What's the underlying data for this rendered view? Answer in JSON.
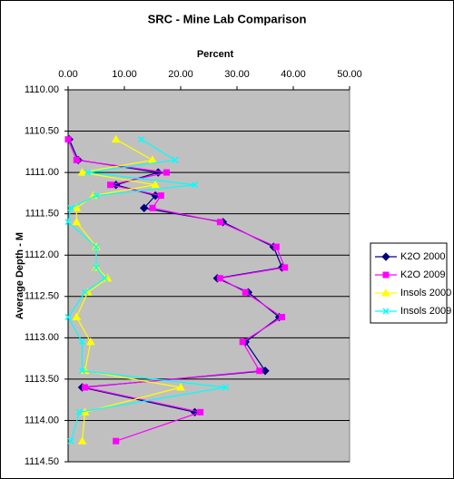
{
  "chart_data": {
    "type": "line",
    "title": "SRC - Mine Lab Comparison",
    "x_label": "Percent",
    "y_label": "Average Depth - M",
    "xlim": [
      0,
      50
    ],
    "xticks": [
      {
        "value": 0,
        "label": "0.00"
      },
      {
        "value": 10,
        "label": "10.00"
      },
      {
        "value": 20,
        "label": "20.00"
      },
      {
        "value": 30,
        "label": "30.00"
      },
      {
        "value": 40,
        "label": "40.00"
      },
      {
        "value": 50,
        "label": "50.00"
      }
    ],
    "ylim": [
      1110,
      1114.5
    ],
    "y_inverted": true,
    "yticks": [
      {
        "value": 1110,
        "label": "1110.00"
      },
      {
        "value": 1110.5,
        "label": "1110.50"
      },
      {
        "value": 1111,
        "label": "1111.00"
      },
      {
        "value": 1111.5,
        "label": "1111.50"
      },
      {
        "value": 1112,
        "label": "1112.00"
      },
      {
        "value": 1112.5,
        "label": "1112.50"
      },
      {
        "value": 1113,
        "label": "1113.00"
      },
      {
        "value": 1113.5,
        "label": "1113.50"
      },
      {
        "value": 1114,
        "label": "1114.00"
      },
      {
        "value": 1114.5,
        "label": "1114.50"
      }
    ],
    "grid": true,
    "legend": "right",
    "depth": [
      1110.6,
      1110.85,
      1111.0,
      1111.15,
      1111.28,
      1111.43,
      1111.6,
      1111.9,
      1112.15,
      1112.28,
      1112.45,
      1112.75,
      1113.05,
      1113.4,
      1113.6,
      1113.9,
      1114.25
    ],
    "series": [
      {
        "name": "K2O 2000",
        "color": "#000080",
        "marker": "diamond",
        "values": [
          0.2,
          1.8,
          16.0,
          8.5,
          15.5,
          13.5,
          27.5,
          36.5,
          38.0,
          26.5,
          32.0,
          37.5,
          31.5,
          35.0,
          2.5,
          22.5,
          null
        ]
      },
      {
        "name": "K2O 2009",
        "color": "#ff00ff",
        "marker": "square",
        "values": [
          0.0,
          1.5,
          17.5,
          7.5,
          16.5,
          15.0,
          27.0,
          37.0,
          38.5,
          27.0,
          31.5,
          38.0,
          31.0,
          34.0,
          3.0,
          23.5,
          8.5
        ]
      },
      {
        "name": "Insols 2000",
        "color": "#ffff00",
        "marker": "triangle",
        "values": [
          8.5,
          15.0,
          2.5,
          15.5,
          4.5,
          1.5,
          1.5,
          5.0,
          5.0,
          7.0,
          3.5,
          1.5,
          4.0,
          3.0,
          20.0,
          3.0,
          2.5
        ]
      },
      {
        "name": "Insols 2009",
        "color": "#00ffff",
        "marker": "cross",
        "values": [
          13.0,
          19.0,
          3.5,
          22.5,
          5.0,
          0.5,
          0.0,
          5.0,
          5.0,
          6.5,
          3.0,
          0.0,
          2.5,
          2.5,
          28.0,
          2.0,
          0.5
        ]
      }
    ]
  }
}
